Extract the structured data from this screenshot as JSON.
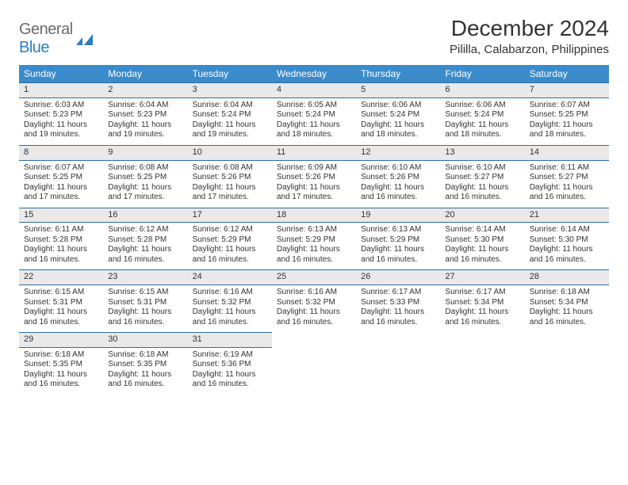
{
  "logo": {
    "general": "General",
    "blue": "Blue"
  },
  "title": "December 2024",
  "location": "Pililla, Calabarzon, Philippines",
  "colors": {
    "header_bg": "#3b8bca",
    "header_text": "#ffffff",
    "daynum_bg": "#e9e9e9",
    "daynum_border": "#2f6fa3",
    "body_text": "#333333",
    "logo_gray": "#6b6b6b",
    "logo_blue": "#2f7cc0",
    "page_bg": "#ffffff"
  },
  "typography": {
    "title_fontsize": 28,
    "location_fontsize": 15,
    "dayheader_fontsize": 12,
    "daynum_fontsize": 11,
    "cell_fontsize": 10
  },
  "layout": {
    "columns": 7,
    "rows": 5
  },
  "day_headers": [
    "Sunday",
    "Monday",
    "Tuesday",
    "Wednesday",
    "Thursday",
    "Friday",
    "Saturday"
  ],
  "weeks": [
    [
      {
        "n": "1",
        "sr": "Sunrise: 6:03 AM",
        "ss": "Sunset: 5:23 PM",
        "d1": "Daylight: 11 hours",
        "d2": "and 19 minutes."
      },
      {
        "n": "2",
        "sr": "Sunrise: 6:04 AM",
        "ss": "Sunset: 5:23 PM",
        "d1": "Daylight: 11 hours",
        "d2": "and 19 minutes."
      },
      {
        "n": "3",
        "sr": "Sunrise: 6:04 AM",
        "ss": "Sunset: 5:24 PM",
        "d1": "Daylight: 11 hours",
        "d2": "and 19 minutes."
      },
      {
        "n": "4",
        "sr": "Sunrise: 6:05 AM",
        "ss": "Sunset: 5:24 PM",
        "d1": "Daylight: 11 hours",
        "d2": "and 18 minutes."
      },
      {
        "n": "5",
        "sr": "Sunrise: 6:06 AM",
        "ss": "Sunset: 5:24 PM",
        "d1": "Daylight: 11 hours",
        "d2": "and 18 minutes."
      },
      {
        "n": "6",
        "sr": "Sunrise: 6:06 AM",
        "ss": "Sunset: 5:24 PM",
        "d1": "Daylight: 11 hours",
        "d2": "and 18 minutes."
      },
      {
        "n": "7",
        "sr": "Sunrise: 6:07 AM",
        "ss": "Sunset: 5:25 PM",
        "d1": "Daylight: 11 hours",
        "d2": "and 18 minutes."
      }
    ],
    [
      {
        "n": "8",
        "sr": "Sunrise: 6:07 AM",
        "ss": "Sunset: 5:25 PM",
        "d1": "Daylight: 11 hours",
        "d2": "and 17 minutes."
      },
      {
        "n": "9",
        "sr": "Sunrise: 6:08 AM",
        "ss": "Sunset: 5:25 PM",
        "d1": "Daylight: 11 hours",
        "d2": "and 17 minutes."
      },
      {
        "n": "10",
        "sr": "Sunrise: 6:08 AM",
        "ss": "Sunset: 5:26 PM",
        "d1": "Daylight: 11 hours",
        "d2": "and 17 minutes."
      },
      {
        "n": "11",
        "sr": "Sunrise: 6:09 AM",
        "ss": "Sunset: 5:26 PM",
        "d1": "Daylight: 11 hours",
        "d2": "and 17 minutes."
      },
      {
        "n": "12",
        "sr": "Sunrise: 6:10 AM",
        "ss": "Sunset: 5:26 PM",
        "d1": "Daylight: 11 hours",
        "d2": "and 16 minutes."
      },
      {
        "n": "13",
        "sr": "Sunrise: 6:10 AM",
        "ss": "Sunset: 5:27 PM",
        "d1": "Daylight: 11 hours",
        "d2": "and 16 minutes."
      },
      {
        "n": "14",
        "sr": "Sunrise: 6:11 AM",
        "ss": "Sunset: 5:27 PM",
        "d1": "Daylight: 11 hours",
        "d2": "and 16 minutes."
      }
    ],
    [
      {
        "n": "15",
        "sr": "Sunrise: 6:11 AM",
        "ss": "Sunset: 5:28 PM",
        "d1": "Daylight: 11 hours",
        "d2": "and 16 minutes."
      },
      {
        "n": "16",
        "sr": "Sunrise: 6:12 AM",
        "ss": "Sunset: 5:28 PM",
        "d1": "Daylight: 11 hours",
        "d2": "and 16 minutes."
      },
      {
        "n": "17",
        "sr": "Sunrise: 6:12 AM",
        "ss": "Sunset: 5:29 PM",
        "d1": "Daylight: 11 hours",
        "d2": "and 16 minutes."
      },
      {
        "n": "18",
        "sr": "Sunrise: 6:13 AM",
        "ss": "Sunset: 5:29 PM",
        "d1": "Daylight: 11 hours",
        "d2": "and 16 minutes."
      },
      {
        "n": "19",
        "sr": "Sunrise: 6:13 AM",
        "ss": "Sunset: 5:29 PM",
        "d1": "Daylight: 11 hours",
        "d2": "and 16 minutes."
      },
      {
        "n": "20",
        "sr": "Sunrise: 6:14 AM",
        "ss": "Sunset: 5:30 PM",
        "d1": "Daylight: 11 hours",
        "d2": "and 16 minutes."
      },
      {
        "n": "21",
        "sr": "Sunrise: 6:14 AM",
        "ss": "Sunset: 5:30 PM",
        "d1": "Daylight: 11 hours",
        "d2": "and 16 minutes."
      }
    ],
    [
      {
        "n": "22",
        "sr": "Sunrise: 6:15 AM",
        "ss": "Sunset: 5:31 PM",
        "d1": "Daylight: 11 hours",
        "d2": "and 16 minutes."
      },
      {
        "n": "23",
        "sr": "Sunrise: 6:15 AM",
        "ss": "Sunset: 5:31 PM",
        "d1": "Daylight: 11 hours",
        "d2": "and 16 minutes."
      },
      {
        "n": "24",
        "sr": "Sunrise: 6:16 AM",
        "ss": "Sunset: 5:32 PM",
        "d1": "Daylight: 11 hours",
        "d2": "and 16 minutes."
      },
      {
        "n": "25",
        "sr": "Sunrise: 6:16 AM",
        "ss": "Sunset: 5:32 PM",
        "d1": "Daylight: 11 hours",
        "d2": "and 16 minutes."
      },
      {
        "n": "26",
        "sr": "Sunrise: 6:17 AM",
        "ss": "Sunset: 5:33 PM",
        "d1": "Daylight: 11 hours",
        "d2": "and 16 minutes."
      },
      {
        "n": "27",
        "sr": "Sunrise: 6:17 AM",
        "ss": "Sunset: 5:34 PM",
        "d1": "Daylight: 11 hours",
        "d2": "and 16 minutes."
      },
      {
        "n": "28",
        "sr": "Sunrise: 6:18 AM",
        "ss": "Sunset: 5:34 PM",
        "d1": "Daylight: 11 hours",
        "d2": "and 16 minutes."
      }
    ],
    [
      {
        "n": "29",
        "sr": "Sunrise: 6:18 AM",
        "ss": "Sunset: 5:35 PM",
        "d1": "Daylight: 11 hours",
        "d2": "and 16 minutes."
      },
      {
        "n": "30",
        "sr": "Sunrise: 6:18 AM",
        "ss": "Sunset: 5:35 PM",
        "d1": "Daylight: 11 hours",
        "d2": "and 16 minutes."
      },
      {
        "n": "31",
        "sr": "Sunrise: 6:19 AM",
        "ss": "Sunset: 5:36 PM",
        "d1": "Daylight: 11 hours",
        "d2": "and 16 minutes."
      },
      null,
      null,
      null,
      null
    ]
  ]
}
